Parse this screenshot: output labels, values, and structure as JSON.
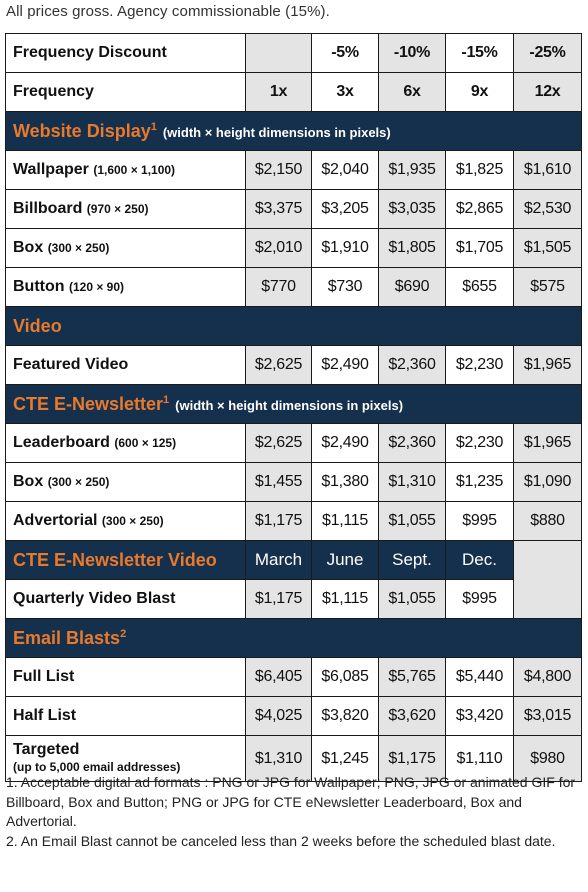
{
  "top_note": "All prices gross. Agency commissionable (15%).",
  "header": {
    "discount_label": "Frequency Discount",
    "discounts": [
      "",
      "-5%",
      "-10%",
      "-15%",
      "-25%"
    ],
    "frequency_label": "Frequency",
    "frequencies": [
      "1x",
      "3x",
      "6x",
      "9x",
      "12x"
    ]
  },
  "sections": {
    "website": {
      "title": "Website Display",
      "sup": "1",
      "subtitle": "(width × height dimensions in pixels)"
    },
    "video": {
      "title": "Video"
    },
    "enews": {
      "title": "CTE E-Newsletter",
      "sup": "1",
      "subtitle": "(width × height dimensions in pixels)"
    },
    "enews_video": {
      "title": "CTE E-Newsletter Video",
      "months": [
        "March",
        "June",
        "Sept.",
        "Dec."
      ]
    },
    "email": {
      "title": "Email Blasts",
      "sup": "2"
    }
  },
  "rows": {
    "wallpaper": {
      "name": "Wallpaper",
      "dims": "(1,600 × 1,100)",
      "prices": [
        "$2,150",
        "$2,040",
        "$1,935",
        "$1,825",
        "$1,610"
      ]
    },
    "billboard": {
      "name": "Billboard",
      "dims": "(970 × 250)",
      "prices": [
        "$3,375",
        "$3,205",
        "$3,035",
        "$2,865",
        "$2,530"
      ]
    },
    "box": {
      "name": "Box",
      "dims": "(300 × 250)",
      "prices": [
        "$2,010",
        "$1,910",
        "$1,805",
        "$1,705",
        "$1,505"
      ]
    },
    "button": {
      "name": "Button",
      "dims": "(120 × 90)",
      "prices": [
        "$770",
        "$730",
        "$690",
        "$655",
        "$575"
      ]
    },
    "featured_video": {
      "name": "Featured Video",
      "prices": [
        "$2,625",
        "$2,490",
        "$2,360",
        "$2,230",
        "$1,965"
      ]
    },
    "leaderboard": {
      "name": "Leaderboard",
      "dims": "(600 × 125)",
      "prices": [
        "$2,625",
        "$2,490",
        "$2,360",
        "$2,230",
        "$1,965"
      ]
    },
    "enews_box": {
      "name": "Box",
      "dims": "(300 × 250)",
      "prices": [
        "$1,455",
        "$1,380",
        "$1,310",
        "$1,235",
        "$1,090"
      ]
    },
    "advertorial": {
      "name": "Advertorial",
      "dims": "(300 × 250)",
      "prices": [
        "$1,175",
        "$1,115",
        "$1,055",
        "$995",
        "$880"
      ]
    },
    "quarterly": {
      "name": "Quarterly Video Blast",
      "prices": [
        "$1,175",
        "$1,115",
        "$1,055",
        "$995"
      ]
    },
    "full_list": {
      "name": "Full List",
      "prices": [
        "$6,405",
        "$6,085",
        "$5,765",
        "$5,440",
        "$4,800"
      ]
    },
    "half_list": {
      "name": "Half List",
      "prices": [
        "$4,025",
        "$3,820",
        "$3,620",
        "$3,420",
        "$3,015"
      ]
    },
    "targeted": {
      "name": "Targeted",
      "dims": "(up to 5,000 email addresses)",
      "prices": [
        "$1,310",
        "$1,245",
        "$1,175",
        "$1,110",
        "$980"
      ]
    }
  },
  "footnotes": [
    "1. Acceptable digital ad formats : PNG or JPG for Wallpaper; PNG, JPG or animated GIF for Billboard, Box and Button; PNG or JPG for CTE eNewsletter Leaderboard, Box and Advertorial.",
    "2. An Email Blast cannot be canceled less than 2 weeks before the scheduled blast date."
  ]
}
